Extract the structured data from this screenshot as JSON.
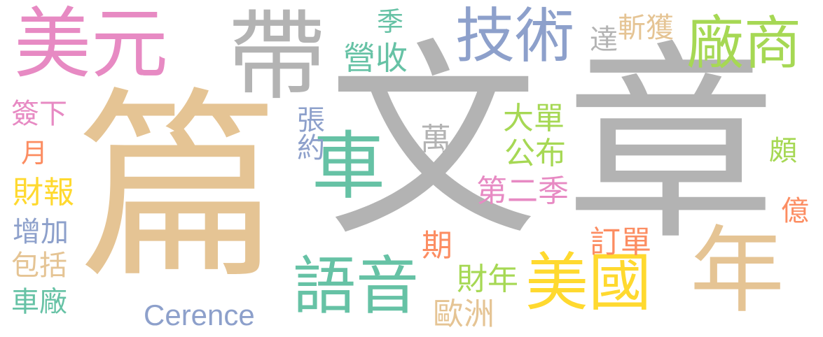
{
  "colors": {
    "gray": "#b3b3b3",
    "tan": "#e5c494",
    "pink": "#e78ac3",
    "blue": "#8da0cb",
    "green": "#a6d854",
    "teal": "#66c2a5",
    "yellow": "#ffd92f",
    "orange": "#fc8d62"
  },
  "words": {
    "wen": "文",
    "zhang": "章",
    "pian": "篇",
    "dai": "帶",
    "meiyuan": "美元",
    "jishu": "技術",
    "changshang": "廠商",
    "che": "車",
    "nian": "年",
    "meiguo": "美國",
    "yuyin": "語音",
    "cerence": "Cerence",
    "qianxia": "簽下",
    "yue": "月",
    "caibao": "財報",
    "zengjia": "增加",
    "baokuo": "包括",
    "chechang": "車廠",
    "ji": "季",
    "yingshou": "營收",
    "zhangyue": "張約",
    "wan": "萬",
    "dadan": "大單",
    "gongbu": "公布",
    "dierji": "第二季",
    "da": "達",
    "zhanhuo": "斬獲",
    "po": "頗",
    "yi": "億",
    "dingdan": "訂單",
    "qi": "期",
    "cainian": "財年",
    "ouzhou": "歐洲"
  }
}
